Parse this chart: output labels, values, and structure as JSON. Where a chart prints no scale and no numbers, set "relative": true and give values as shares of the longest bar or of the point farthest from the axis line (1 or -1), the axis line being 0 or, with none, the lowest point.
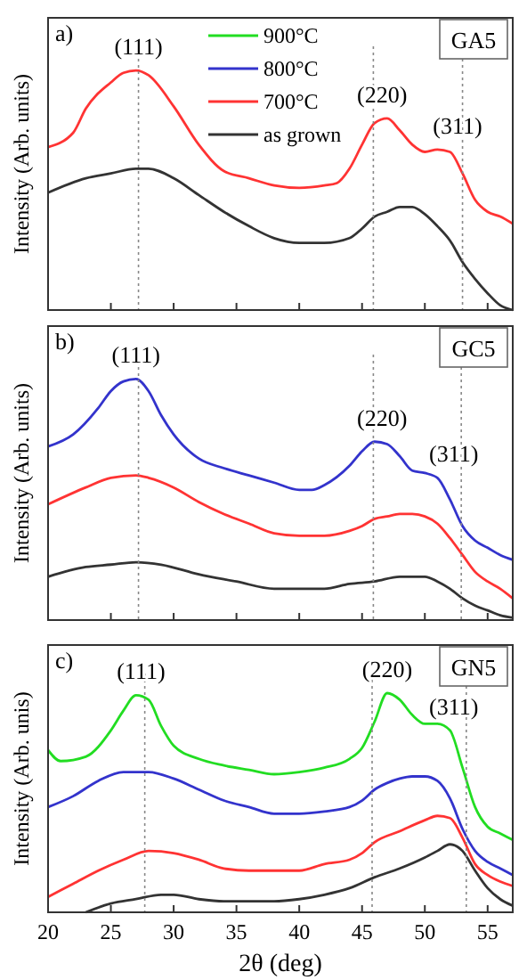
{
  "chart_data": [
    {
      "type": "line",
      "relative": true,
      "ylabel": "Intensity (Arb. units)",
      "xlim": [
        20,
        57
      ],
      "xticks": [
        20,
        25,
        30,
        35,
        40,
        45,
        50,
        55
      ],
      "tick_labels": false,
      "legend": "top",
      "annotations": [
        "a)",
        "GA5",
        {
          "text": "(111)",
          "x": 27.2,
          "y": 1
        },
        {
          "text": "(220)",
          "x": 46.6,
          "y": 0.8
        },
        {
          "text": "(311)",
          "x": 52.6,
          "y": 0.67
        }
      ],
      "ref_lines": [
        {
          "axis": "x",
          "value": 27.2,
          "line_style": "dotted"
        },
        {
          "axis": "x",
          "value": 45.9,
          "line_style": "dotted"
        },
        {
          "axis": "x",
          "value": 53,
          "line_style": "dotted"
        }
      ],
      "series": [
        {
          "name": "900°C",
          "color": "#22dd22"
        },
        {
          "name": "800°C",
          "color": "#3333cc"
        },
        {
          "name": "700°C",
          "color": "#ff3333",
          "x": [
            20,
            22,
            23,
            25,
            26,
            27,
            28,
            30,
            32,
            34,
            36,
            38,
            40,
            42,
            43,
            44,
            45,
            46,
            47,
            48,
            49,
            50,
            51,
            52,
            53,
            54,
            55,
            56,
            57
          ],
          "values": [
            0.68,
            0.74,
            0.84,
            0.95,
            0.99,
            1,
            0.98,
            0.85,
            0.69,
            0.58,
            0.55,
            0.52,
            0.51,
            0.52,
            0.53,
            0.59,
            0.69,
            0.78,
            0.8,
            0.75,
            0.69,
            0.66,
            0.67,
            0.66,
            0.57,
            0.46,
            0.41,
            0.39,
            0.36
          ]
        },
        {
          "name": "as grown",
          "color": "#333333",
          "x": [
            20,
            23,
            25,
            27,
            28,
            30,
            32,
            34,
            36,
            38,
            40,
            42,
            44,
            45,
            46,
            47,
            48,
            49,
            50,
            51,
            52,
            53,
            54,
            55,
            56,
            57
          ],
          "values": [
            0.49,
            0.55,
            0.57,
            0.59,
            0.59,
            0.55,
            0.48,
            0.41,
            0.35,
            0.3,
            0.28,
            0.28,
            0.3,
            0.34,
            0.39,
            0.41,
            0.43,
            0.43,
            0.4,
            0.35,
            0.29,
            0.2,
            0.13,
            0.07,
            0.02,
            0
          ]
        }
      ]
    },
    {
      "type": "line",
      "relative": true,
      "ylabel": "Intensity (Arb. units)",
      "xlim": [
        20,
        57
      ],
      "xticks": [
        20,
        25,
        30,
        35,
        40,
        45,
        50,
        55
      ],
      "tick_labels": false,
      "annotations": [
        "b)",
        "GC5",
        {
          "text": "(111)",
          "x": 27,
          "y": 1
        },
        {
          "text": "(220)",
          "x": 46.6,
          "y": 0.74
        },
        {
          "text": "(311)",
          "x": 52.3,
          "y": 0.59
        }
      ],
      "ref_lines": [
        {
          "axis": "x",
          "value": 27.2,
          "line_style": "dotted"
        },
        {
          "axis": "x",
          "value": 45.9,
          "line_style": "dotted"
        },
        {
          "axis": "x",
          "value": 52.9,
          "line_style": "dotted"
        }
      ],
      "series": [
        {
          "color": "#3333cc",
          "x": [
            20,
            22,
            24,
            25,
            26,
            27,
            28,
            29,
            30,
            32,
            34,
            36,
            38,
            40,
            41,
            42,
            44,
            45,
            46,
            47,
            48,
            49,
            50,
            51,
            52,
            53,
            54,
            55,
            56,
            57
          ],
          "values": [
            0.72,
            0.77,
            0.88,
            0.95,
            0.99,
            1,
            0.95,
            0.85,
            0.77,
            0.67,
            0.63,
            0.6,
            0.57,
            0.54,
            0.54,
            0.56,
            0.64,
            0.7,
            0.74,
            0.73,
            0.68,
            0.62,
            0.61,
            0.59,
            0.5,
            0.39,
            0.33,
            0.3,
            0.27,
            0.25
          ]
        },
        {
          "color": "#ff3333",
          "x": [
            20,
            23,
            25,
            27,
            28,
            30,
            32,
            34,
            36,
            38,
            40,
            42,
            44,
            45,
            46,
            47,
            48,
            49,
            50,
            51,
            52,
            53,
            54,
            55,
            56,
            57
          ],
          "values": [
            0.48,
            0.55,
            0.59,
            0.6,
            0.59,
            0.55,
            0.49,
            0.44,
            0.4,
            0.36,
            0.35,
            0.35,
            0.37,
            0.39,
            0.42,
            0.43,
            0.44,
            0.44,
            0.43,
            0.4,
            0.34,
            0.27,
            0.2,
            0.16,
            0.13,
            0.09
          ]
        },
        {
          "color": "#333333",
          "x": [
            20,
            23,
            25,
            27,
            29,
            32,
            35,
            38,
            40,
            42,
            44,
            46,
            48,
            49,
            50,
            51,
            52,
            53,
            54,
            55,
            56,
            57
          ],
          "values": [
            0.18,
            0.22,
            0.23,
            0.24,
            0.23,
            0.19,
            0.16,
            0.13,
            0.13,
            0.13,
            0.15,
            0.16,
            0.18,
            0.18,
            0.18,
            0.16,
            0.13,
            0.09,
            0.06,
            0.04,
            0.02,
            0.01
          ]
        }
      ]
    },
    {
      "type": "line",
      "relative": true,
      "ylabel": "Intensity (Arb. unis)",
      "xlabel": "2θ (deg)",
      "xlim": [
        20,
        57
      ],
      "xticks": [
        20,
        25,
        30,
        35,
        40,
        45,
        50,
        55
      ],
      "tick_labels": "x",
      "annotations": [
        "c)",
        "GN5",
        {
          "text": "(111)",
          "x": 27.4,
          "y": 0.99
        },
        {
          "text": "(220)",
          "x": 47,
          "y": 1
        },
        {
          "text": "(311)",
          "x": 52.3,
          "y": 0.83
        }
      ],
      "ref_lines": [
        {
          "axis": "x",
          "value": 27.7,
          "line_style": "dotted"
        },
        {
          "axis": "x",
          "value": 45.8,
          "line_style": "dotted"
        },
        {
          "axis": "x",
          "value": 53.3,
          "line_style": "dotted"
        }
      ],
      "series": [
        {
          "color": "#22dd22",
          "x": [
            20,
            21,
            23,
            25,
            26,
            27,
            28,
            29,
            30,
            32,
            34,
            36,
            38,
            40,
            42,
            44,
            45,
            46,
            47,
            48,
            49,
            50,
            51,
            52,
            53,
            54,
            55,
            56,
            57
          ],
          "values": [
            0.74,
            0.69,
            0.71,
            0.83,
            0.92,
            0.99,
            0.97,
            0.85,
            0.76,
            0.7,
            0.67,
            0.65,
            0.63,
            0.64,
            0.66,
            0.7,
            0.75,
            0.87,
            1,
            0.97,
            0.9,
            0.86,
            0.86,
            0.83,
            0.66,
            0.48,
            0.39,
            0.36,
            0.33
          ]
        },
        {
          "color": "#3333cc",
          "x": [
            20,
            22,
            24,
            26,
            28,
            30,
            32,
            34,
            36,
            38,
            40,
            42,
            44,
            45,
            46,
            47,
            48,
            49,
            50,
            51,
            52,
            53,
            54,
            55,
            56,
            57
          ],
          "values": [
            0.48,
            0.53,
            0.6,
            0.64,
            0.64,
            0.61,
            0.56,
            0.51,
            0.48,
            0.45,
            0.45,
            0.46,
            0.48,
            0.51,
            0.56,
            0.59,
            0.61,
            0.62,
            0.62,
            0.6,
            0.52,
            0.38,
            0.28,
            0.23,
            0.2,
            0.17
          ]
        },
        {
          "color": "#ff3333",
          "x": [
            20,
            22,
            24,
            26,
            28,
            30,
            32,
            34,
            36,
            38,
            40,
            42,
            44,
            45,
            46,
            48,
            50,
            51,
            52,
            53,
            54,
            55,
            56,
            57
          ],
          "values": [
            0.07,
            0.13,
            0.19,
            0.24,
            0.28,
            0.27,
            0.24,
            0.2,
            0.19,
            0.19,
            0.19,
            0.22,
            0.24,
            0.27,
            0.32,
            0.37,
            0.42,
            0.44,
            0.43,
            0.34,
            0.22,
            0.17,
            0.14,
            0.12
          ]
        },
        {
          "color": "#333333",
          "x": [
            23,
            25,
            27,
            29,
            30,
            32,
            34,
            36,
            38,
            40,
            42,
            44,
            46,
            48,
            50,
            51,
            52,
            53,
            54,
            55,
            56,
            57
          ],
          "values": [
            0,
            0.04,
            0.06,
            0.08,
            0.08,
            0.06,
            0.05,
            0.05,
            0.05,
            0.06,
            0.08,
            0.11,
            0.16,
            0.2,
            0.25,
            0.28,
            0.31,
            0.28,
            0.19,
            0.11,
            0.06,
            0.03
          ]
        }
      ]
    }
  ]
}
